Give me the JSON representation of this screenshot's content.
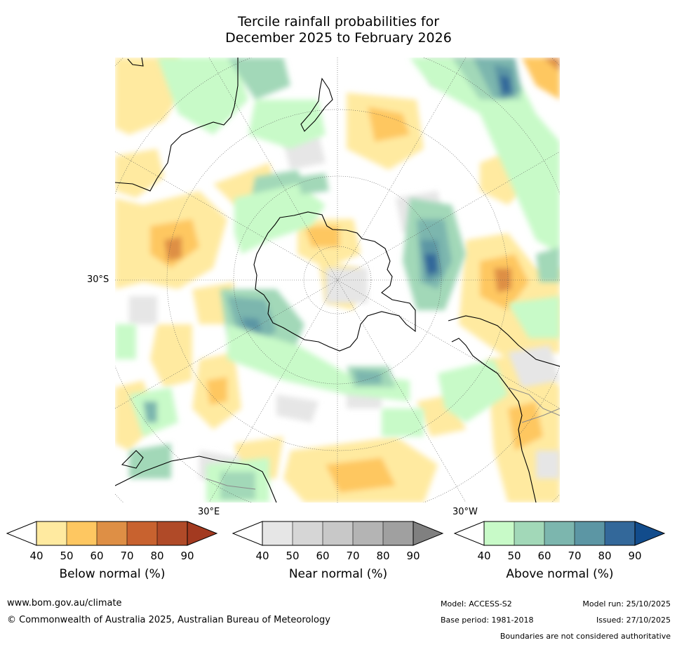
{
  "title": {
    "line1": "Tercile rainfall probabilities for",
    "line2": "December 2025 to February 2026"
  },
  "map": {
    "lat_label": "30°S",
    "lon_label_east": "30°E",
    "lon_label_west": "30°W",
    "colors": {
      "ocean_base": "#ffffff",
      "coast": "#000000",
      "border": "#8a8a8a",
      "grid": "#555555"
    }
  },
  "legends": [
    {
      "title": "Below normal (%)",
      "ticks": [
        "40",
        "50",
        "60",
        "70",
        "80",
        "90"
      ],
      "low_color": "#ffffff",
      "colors": [
        "#ffeaa0",
        "#fec761",
        "#de8f45",
        "#c8622f",
        "#b04a28"
      ],
      "high_color": "#a33a20"
    },
    {
      "title": "Near normal (%)",
      "ticks": [
        "40",
        "50",
        "60",
        "70",
        "80",
        "90"
      ],
      "low_color": "#ffffff",
      "colors": [
        "#e6e6e6",
        "#d6d6d6",
        "#c8c8c8",
        "#b4b4b4",
        "#a0a0a0"
      ],
      "high_color": "#808080"
    },
    {
      "title": "Above normal (%)",
      "ticks": [
        "40",
        "50",
        "60",
        "70",
        "80",
        "90"
      ],
      "low_color": "#ffffff",
      "colors": [
        "#c8fac8",
        "#a2d8b8",
        "#7cb6ae",
        "#5c96a4",
        "#33689a"
      ],
      "high_color": "#124c8c"
    }
  ],
  "footer": {
    "url": "www.bom.gov.au/climate",
    "copyright": "© Commonwealth of Australia 2025, Australian Bureau of Meteorology",
    "model": "Model: ACCESS-S2",
    "base_period": "Base period: 1981-2018",
    "model_run": "Model run: 25/10/2025",
    "issued": "Issued: 27/10/2025",
    "disclaimer": "Boundaries are not considered authoritative"
  }
}
